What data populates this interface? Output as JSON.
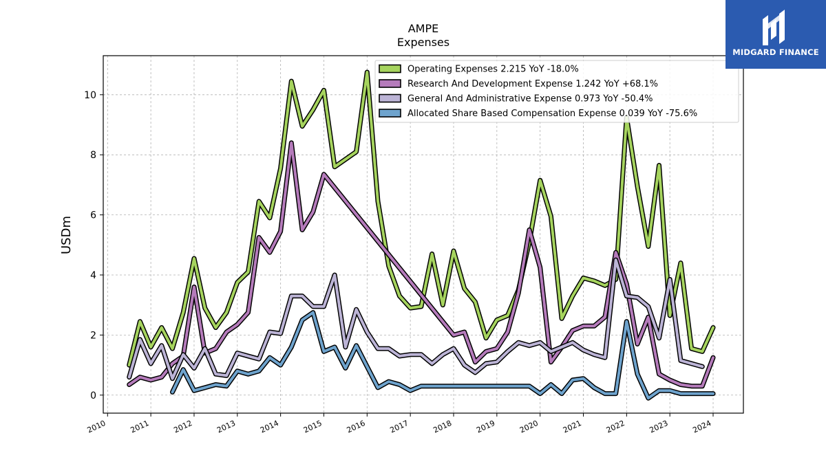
{
  "brand": {
    "name": "MIDGARD FINANCE",
    "bg_color": "#2b5bb0"
  },
  "chart_data": {
    "type": "line",
    "title": "AMPE",
    "subtitle": "Expenses",
    "xlabel": "",
    "ylabel": "USDm",
    "xlim": [
      2009.9,
      2024.7
    ],
    "ylim": [
      -0.6,
      11.3
    ],
    "x_ticks": [
      "2010",
      "2011",
      "2012",
      "2013",
      "2014",
      "2015",
      "2016",
      "2017",
      "2018",
      "2019",
      "2020",
      "2021",
      "2022",
      "2023",
      "2024"
    ],
    "y_ticks": [
      0,
      2,
      4,
      6,
      8,
      10
    ],
    "grid": true,
    "legend_position": "top-right",
    "series": [
      {
        "name": "Operating Expenses",
        "legend_label": "Operating Expenses  2.215 YoY -18.0%",
        "color": "#a6d45e",
        "points": [
          [
            2010.5,
            1.0
          ],
          [
            2010.75,
            2.45
          ],
          [
            2011.0,
            1.6
          ],
          [
            2011.25,
            2.25
          ],
          [
            2011.5,
            1.55
          ],
          [
            2011.75,
            2.75
          ],
          [
            2012.0,
            4.55
          ],
          [
            2012.25,
            2.9
          ],
          [
            2012.5,
            2.25
          ],
          [
            2012.75,
            2.75
          ],
          [
            2013.0,
            3.75
          ],
          [
            2013.25,
            4.1
          ],
          [
            2013.5,
            6.45
          ],
          [
            2013.75,
            5.9
          ],
          [
            2014.0,
            7.55
          ],
          [
            2014.25,
            10.45
          ],
          [
            2014.5,
            8.95
          ],
          [
            2014.75,
            9.5
          ],
          [
            2015.0,
            10.15
          ],
          [
            2015.25,
            7.6
          ],
          [
            2015.75,
            8.1
          ],
          [
            2016.0,
            10.75
          ],
          [
            2016.25,
            6.45
          ],
          [
            2016.5,
            4.3
          ],
          [
            2016.75,
            3.3
          ],
          [
            2017.0,
            2.9
          ],
          [
            2017.25,
            2.95
          ],
          [
            2017.5,
            4.7
          ],
          [
            2017.75,
            3.0
          ],
          [
            2018.0,
            4.8
          ],
          [
            2018.25,
            3.55
          ],
          [
            2018.5,
            3.1
          ],
          [
            2018.75,
            1.9
          ],
          [
            2019.0,
            2.5
          ],
          [
            2019.25,
            2.65
          ],
          [
            2019.5,
            3.5
          ],
          [
            2019.75,
            5.1
          ],
          [
            2020.0,
            7.15
          ],
          [
            2020.25,
            5.95
          ],
          [
            2020.5,
            2.55
          ],
          [
            2020.75,
            3.3
          ],
          [
            2021.0,
            3.9
          ],
          [
            2021.25,
            3.8
          ],
          [
            2021.5,
            3.65
          ],
          [
            2021.75,
            3.85
          ],
          [
            2022.0,
            9.25
          ],
          [
            2022.25,
            6.95
          ],
          [
            2022.5,
            4.95
          ],
          [
            2022.75,
            7.65
          ],
          [
            2023.0,
            2.65
          ],
          [
            2023.25,
            4.4
          ],
          [
            2023.5,
            1.55
          ],
          [
            2023.75,
            1.45
          ],
          [
            2024.0,
            2.25
          ]
        ]
      },
      {
        "name": "Research And Development Expense",
        "legend_label": "Research And Development Expense  1.242 YoY +68.1%",
        "color": "#b57bbb",
        "points": [
          [
            2010.5,
            0.35
          ],
          [
            2010.75,
            0.6
          ],
          [
            2011.0,
            0.5
          ],
          [
            2011.25,
            0.6
          ],
          [
            2011.5,
            1.05
          ],
          [
            2011.75,
            1.3
          ],
          [
            2012.0,
            3.6
          ],
          [
            2012.25,
            1.4
          ],
          [
            2012.5,
            1.55
          ],
          [
            2012.75,
            2.1
          ],
          [
            2013.0,
            2.35
          ],
          [
            2013.25,
            2.75
          ],
          [
            2013.5,
            5.25
          ],
          [
            2013.75,
            4.75
          ],
          [
            2014.0,
            5.45
          ],
          [
            2014.25,
            8.4
          ],
          [
            2014.5,
            5.5
          ],
          [
            2014.75,
            6.1
          ],
          [
            2015.0,
            7.35
          ],
          [
            2018.0,
            2.0
          ],
          [
            2018.25,
            2.1
          ],
          [
            2018.5,
            1.1
          ],
          [
            2018.75,
            1.45
          ],
          [
            2019.0,
            1.55
          ],
          [
            2019.25,
            2.1
          ],
          [
            2019.5,
            3.4
          ],
          [
            2019.75,
            5.5
          ],
          [
            2020.0,
            4.25
          ],
          [
            2020.25,
            1.1
          ],
          [
            2020.5,
            1.6
          ],
          [
            2020.75,
            2.15
          ],
          [
            2021.0,
            2.3
          ],
          [
            2021.25,
            2.3
          ],
          [
            2021.5,
            2.6
          ],
          [
            2021.75,
            4.75
          ],
          [
            2022.0,
            3.7
          ],
          [
            2022.25,
            1.7
          ],
          [
            2022.5,
            2.6
          ],
          [
            2022.75,
            0.7
          ],
          [
            2023.0,
            0.5
          ],
          [
            2023.25,
            0.35
          ],
          [
            2023.5,
            0.3
          ],
          [
            2023.75,
            0.3
          ],
          [
            2024.0,
            1.25
          ]
        ]
      },
      {
        "name": "General And Administrative Expense",
        "legend_label": "General And Administrative Expense  0.973 YoY -50.4%",
        "color": "#bcb4d6",
        "points": [
          [
            2010.5,
            0.6
          ],
          [
            2010.75,
            1.85
          ],
          [
            2011.0,
            1.05
          ],
          [
            2011.25,
            1.65
          ],
          [
            2011.5,
            0.55
          ],
          [
            2011.75,
            1.35
          ],
          [
            2012.0,
            0.9
          ],
          [
            2012.25,
            1.55
          ],
          [
            2012.5,
            0.7
          ],
          [
            2012.75,
            0.65
          ],
          [
            2013.0,
            1.4
          ],
          [
            2013.25,
            1.3
          ],
          [
            2013.5,
            1.2
          ],
          [
            2013.75,
            2.1
          ],
          [
            2014.0,
            2.05
          ],
          [
            2014.25,
            3.3
          ],
          [
            2014.5,
            3.3
          ],
          [
            2014.75,
            2.95
          ],
          [
            2015.0,
            2.95
          ],
          [
            2015.25,
            4.0
          ],
          [
            2015.5,
            1.6
          ],
          [
            2015.75,
            2.85
          ],
          [
            2016.0,
            2.1
          ],
          [
            2016.25,
            1.55
          ],
          [
            2016.5,
            1.55
          ],
          [
            2016.75,
            1.3
          ],
          [
            2017.0,
            1.35
          ],
          [
            2017.25,
            1.35
          ],
          [
            2017.5,
            1.05
          ],
          [
            2017.75,
            1.35
          ],
          [
            2018.0,
            1.55
          ],
          [
            2018.25,
            1.0
          ],
          [
            2018.5,
            0.75
          ],
          [
            2018.75,
            1.05
          ],
          [
            2019.0,
            1.1
          ],
          [
            2019.25,
            1.45
          ],
          [
            2019.5,
            1.75
          ],
          [
            2019.75,
            1.65
          ],
          [
            2020.0,
            1.75
          ],
          [
            2020.25,
            1.45
          ],
          [
            2020.5,
            1.6
          ],
          [
            2020.75,
            1.75
          ],
          [
            2021.0,
            1.5
          ],
          [
            2021.25,
            1.35
          ],
          [
            2021.5,
            1.25
          ],
          [
            2021.75,
            4.5
          ],
          [
            2022.0,
            3.3
          ],
          [
            2022.25,
            3.25
          ],
          [
            2022.5,
            2.95
          ],
          [
            2022.75,
            1.9
          ],
          [
            2023.0,
            3.85
          ],
          [
            2023.25,
            1.15
          ],
          [
            2023.5,
            1.05
          ],
          [
            2023.75,
            0.95
          ]
        ]
      },
      {
        "name": "Allocated Share Based Compensation Expense",
        "legend_label": "Allocated Share Based Compensation Expense  0.039 YoY -75.6%",
        "color": "#6ea3cd",
        "points": [
          [
            2011.5,
            0.1
          ],
          [
            2011.75,
            0.85
          ],
          [
            2012.0,
            0.15
          ],
          [
            2012.25,
            0.25
          ],
          [
            2012.5,
            0.35
          ],
          [
            2012.75,
            0.3
          ],
          [
            2013.0,
            0.8
          ],
          [
            2013.25,
            0.7
          ],
          [
            2013.5,
            0.8
          ],
          [
            2013.75,
            1.25
          ],
          [
            2014.0,
            1.0
          ],
          [
            2014.25,
            1.6
          ],
          [
            2014.5,
            2.5
          ],
          [
            2014.75,
            2.75
          ],
          [
            2015.0,
            1.45
          ],
          [
            2015.25,
            1.6
          ],
          [
            2015.5,
            0.9
          ],
          [
            2015.75,
            1.65
          ],
          [
            2016.0,
            0.95
          ],
          [
            2016.25,
            0.25
          ],
          [
            2016.5,
            0.45
          ],
          [
            2016.75,
            0.35
          ],
          [
            2017.0,
            0.15
          ],
          [
            2017.25,
            0.3
          ],
          [
            2017.5,
            0.3
          ],
          [
            2017.75,
            0.3
          ],
          [
            2019.75,
            0.3
          ],
          [
            2020.0,
            0.05
          ],
          [
            2020.25,
            0.35
          ],
          [
            2020.5,
            0.05
          ],
          [
            2020.75,
            0.5
          ],
          [
            2021.0,
            0.55
          ],
          [
            2021.25,
            0.25
          ],
          [
            2021.5,
            0.05
          ],
          [
            2021.75,
            0.05
          ],
          [
            2022.0,
            2.45
          ],
          [
            2022.25,
            0.7
          ],
          [
            2022.5,
            -0.1
          ],
          [
            2022.75,
            0.15
          ],
          [
            2023.0,
            0.15
          ],
          [
            2023.25,
            0.05
          ],
          [
            2023.5,
            0.05
          ],
          [
            2024.0,
            0.05
          ]
        ]
      }
    ]
  }
}
